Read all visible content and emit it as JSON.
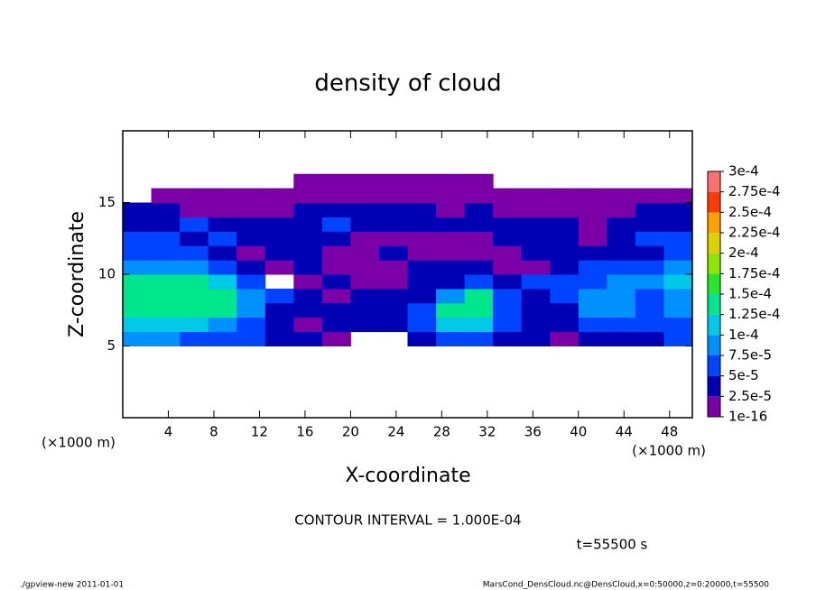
{
  "chart_data": {
    "type": "contour",
    "title": "density of cloud",
    "xlabel": "X-coordinate",
    "ylabel": "Z-coordinate",
    "xunit": "(×1000 m)",
    "yunit": "(×1000 m)",
    "contour_note": "CONTOUR INTERVAL = 1.000E-04",
    "time_label": "t=55500 s",
    "footer_left": "./gpview-new  2011-01-01",
    "footer_right": "MarsCond_DensCloud.nc@DensCloud,x=0:50000,z=0:20000,t=55500",
    "xlim": [
      0,
      50
    ],
    "ylim": [
      0,
      20
    ],
    "xticks": [
      4,
      8,
      12,
      16,
      20,
      24,
      28,
      32,
      36,
      40,
      44,
      48
    ],
    "yticks": [
      5,
      10,
      15
    ],
    "x": [
      1.25,
      3.75,
      6.25,
      8.75,
      11.25,
      13.75,
      16.25,
      18.75,
      21.25,
      23.75,
      26.25,
      28.75,
      31.25,
      33.75,
      36.25,
      38.75,
      41.25,
      43.75,
      46.25,
      48.75
    ],
    "y": [
      5.5,
      6.5,
      7.5,
      8.5,
      9.5,
      10.5,
      11.5,
      12.5,
      13.5,
      14.5,
      15.5,
      16.5
    ],
    "z": [
      [
        9e-05,
        9e-05,
        6e-05,
        6e-05,
        6e-05,
        3e-05,
        3e-05,
        1e-05,
        null,
        null,
        3e-05,
        6e-05,
        6e-05,
        3e-05,
        3e-05,
        1e-05,
        3e-05,
        3e-05,
        3e-05,
        6e-05
      ],
      [
        0.00011,
        0.00011,
        0.00011,
        9e-05,
        6e-05,
        3e-05,
        1e-05,
        3e-05,
        3e-05,
        3e-05,
        6e-05,
        0.00011,
        0.00011,
        6e-05,
        3e-05,
        3e-05,
        6e-05,
        6e-05,
        6e-05,
        6e-05
      ],
      [
        0.00013,
        0.00013,
        0.00013,
        0.00013,
        9e-05,
        3e-05,
        3e-05,
        3e-05,
        3e-05,
        3e-05,
        6e-05,
        0.00013,
        0.00013,
        6e-05,
        3e-05,
        3e-05,
        9e-05,
        9e-05,
        6e-05,
        9e-05
      ],
      [
        0.00014,
        0.00014,
        0.00014,
        0.00013,
        9e-05,
        6e-05,
        3e-05,
        1e-05,
        3e-05,
        3e-05,
        3e-05,
        9e-05,
        0.00013,
        6e-05,
        3e-05,
        6e-05,
        9e-05,
        9e-05,
        6e-05,
        9e-05
      ],
      [
        0.00013,
        0.00013,
        0.00013,
        0.00011,
        6e-05,
        null,
        1e-05,
        3e-05,
        1e-05,
        1e-05,
        3e-05,
        3e-05,
        6e-05,
        3e-05,
        6e-05,
        6e-05,
        6e-05,
        9e-05,
        9e-05,
        0.00011
      ],
      [
        9e-05,
        9e-05,
        9e-05,
        6e-05,
        3e-05,
        1e-05,
        3e-05,
        1e-05,
        1e-05,
        1e-05,
        3e-05,
        3e-05,
        3e-05,
        1e-05,
        1e-05,
        3e-05,
        6e-05,
        6e-05,
        6e-05,
        9e-05
      ],
      [
        6e-05,
        6e-05,
        6e-05,
        3e-05,
        1e-05,
        3e-05,
        3e-05,
        1e-05,
        1e-05,
        3e-05,
        1e-05,
        1e-05,
        1e-05,
        1e-05,
        3e-05,
        3e-05,
        3e-05,
        3e-05,
        3e-05,
        6e-05
      ],
      [
        6e-05,
        6e-05,
        3e-05,
        6e-05,
        3e-05,
        3e-05,
        3e-05,
        3e-05,
        1e-05,
        1e-05,
        1e-05,
        1e-05,
        1e-05,
        3e-05,
        3e-05,
        3e-05,
        1e-05,
        3e-05,
        6e-05,
        6e-05
      ],
      [
        3e-05,
        3e-05,
        6e-05,
        3e-05,
        3e-05,
        3e-05,
        3e-05,
        6e-05,
        3e-05,
        3e-05,
        3e-05,
        3e-05,
        3e-05,
        3e-05,
        3e-05,
        3e-05,
        1e-05,
        3e-05,
        3e-05,
        3e-05
      ],
      [
        3e-05,
        3e-05,
        1e-05,
        1e-05,
        1e-05,
        1e-05,
        3e-05,
        3e-05,
        3e-05,
        3e-05,
        3e-05,
        1e-05,
        3e-05,
        1e-05,
        1e-05,
        1e-05,
        1e-05,
        1e-05,
        3e-05,
        3e-05
      ],
      [
        null,
        1e-05,
        1e-05,
        1e-05,
        1e-05,
        1e-05,
        1e-05,
        1e-05,
        1e-05,
        1e-05,
        1e-05,
        1e-05,
        1e-05,
        1e-05,
        1e-05,
        1e-05,
        1e-05,
        1e-05,
        1e-05,
        1e-05
      ],
      [
        null,
        null,
        null,
        null,
        null,
        null,
        1e-05,
        1e-05,
        1e-05,
        1e-05,
        1e-05,
        1e-05,
        1e-05,
        null,
        null,
        null,
        null,
        null,
        null,
        null
      ]
    ],
    "levels": [
      {
        "value": 1e-16,
        "label": "1e-16"
      },
      {
        "value": 2.5e-05,
        "label": "2.5e-5"
      },
      {
        "value": 5e-05,
        "label": "5e-5"
      },
      {
        "value": 7.5e-05,
        "label": "7.5e-5"
      },
      {
        "value": 0.0001,
        "label": "1e-4"
      },
      {
        "value": 0.000125,
        "label": "1.25e-4"
      },
      {
        "value": 0.00015,
        "label": "1.5e-4"
      },
      {
        "value": 0.000175,
        "label": "1.75e-4"
      },
      {
        "value": 0.0002,
        "label": "2e-4"
      },
      {
        "value": 0.000225,
        "label": "2.25e-4"
      },
      {
        "value": 0.00025,
        "label": "2.5e-4"
      },
      {
        "value": 0.000275,
        "label": "2.75e-4"
      },
      {
        "value": 0.0003,
        "label": "3e-4"
      }
    ],
    "colors": [
      "#7b00a8",
      "#0000b4",
      "#0044ff",
      "#0090ff",
      "#00c8e6",
      "#00e68c",
      "#28e628",
      "#8ce600",
      "#dcd200",
      "#ffa000",
      "#ff3c00",
      "#ff7070"
    ]
  }
}
